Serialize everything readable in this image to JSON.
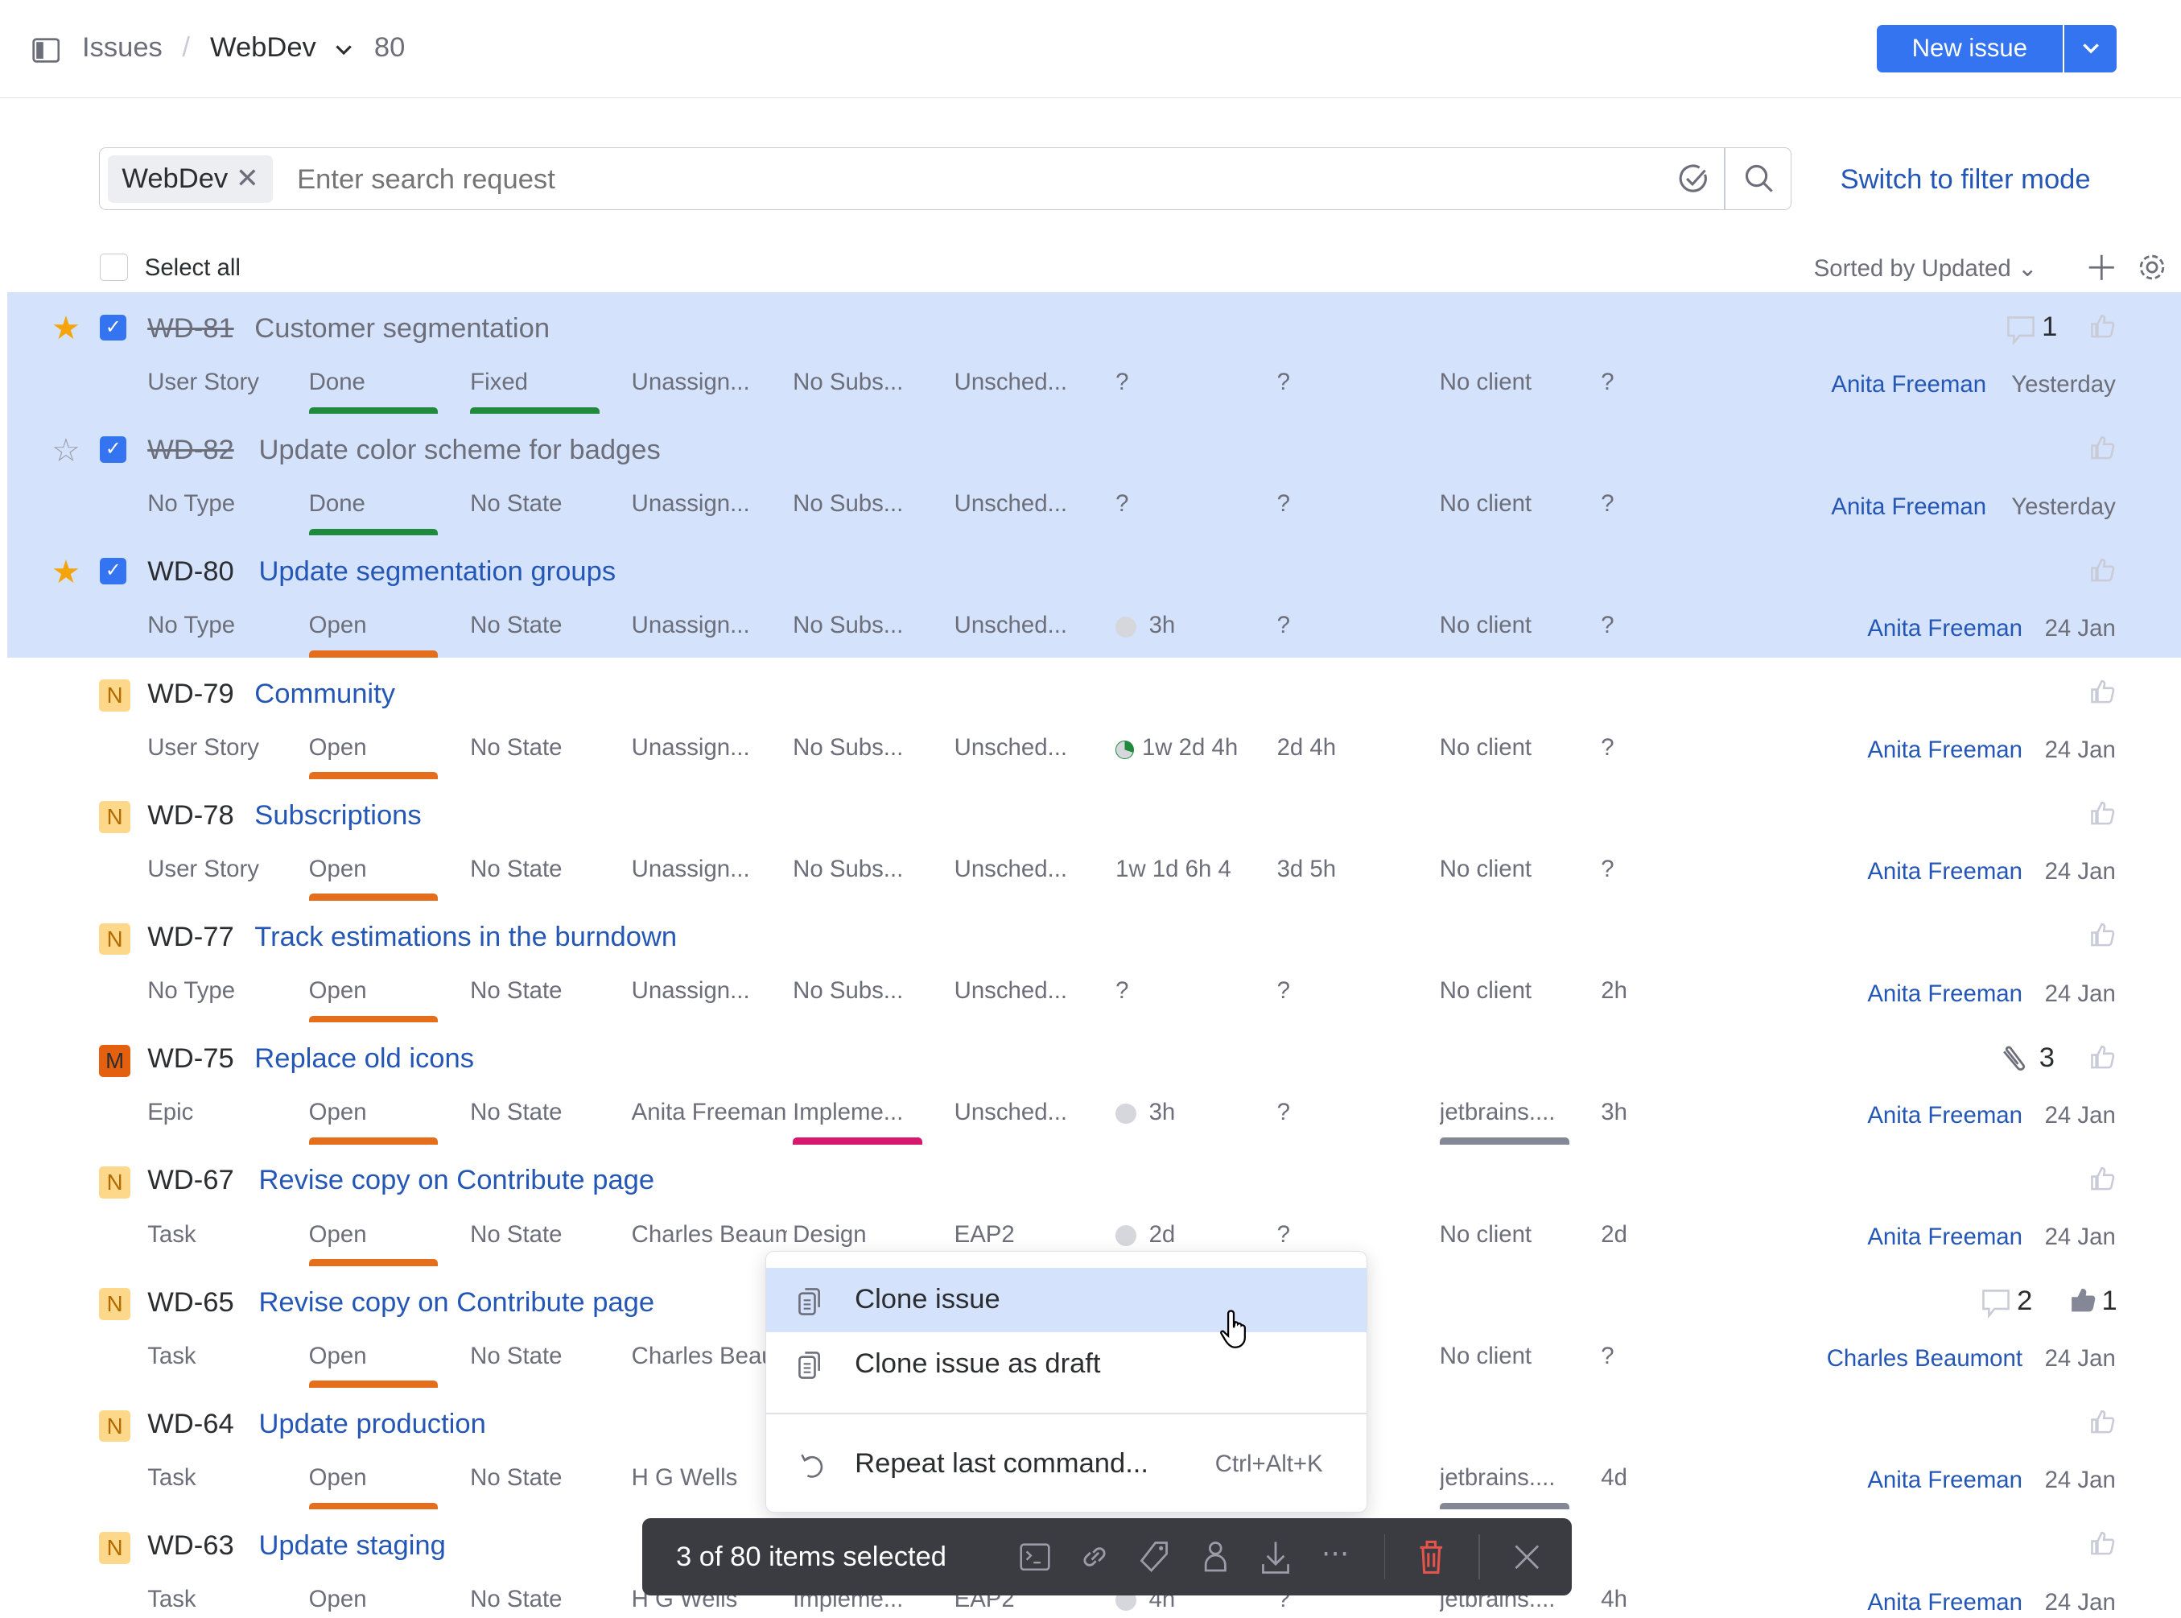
{
  "header": {
    "section": "Issues",
    "project": "WebDev",
    "count": "80",
    "new_issue": "New issue"
  },
  "search": {
    "chip": "WebDev",
    "placeholder": "Enter search request",
    "switch_mode": "Switch to filter mode"
  },
  "list": {
    "select_all": "Select all",
    "sort": "Sorted by Updated"
  },
  "colors": {
    "accent": "#3574f0",
    "selected_row": "#d4e2fc",
    "done": "#1f8a3b",
    "open": "#e56e1c",
    "implementation": "#d6186f",
    "client": "#848796",
    "badge_n": "#fdd78a",
    "badge_m": "#e4600e"
  },
  "issues": [
    {
      "star": true,
      "checked": true,
      "resolved": true,
      "id": "WD-81",
      "title": "Customer segmentation",
      "fields": [
        "User Story",
        "Done",
        "Fixed",
        "Unassign...",
        "No Subs...",
        "Unsched...",
        "?",
        "?",
        "No client",
        "?"
      ],
      "bars": {
        "1": "done",
        "2": "done"
      },
      "est_icon": "",
      "reporter": "Anita Freeman",
      "updated": "Yesterday",
      "comments": "1",
      "attachments": "",
      "votes": ""
    },
    {
      "star": false,
      "checked": true,
      "resolved": true,
      "id": "WD-82",
      "title": "Update color scheme for badges",
      "fields": [
        "No Type",
        "Done",
        "No State",
        "Unassign...",
        "No Subs...",
        "Unsched...",
        "?",
        "?",
        "No client",
        "?"
      ],
      "bars": {
        "1": "done"
      },
      "est_icon": "",
      "reporter": "Anita Freeman",
      "updated": "Yesterday",
      "comments": "",
      "attachments": "",
      "votes": ""
    },
    {
      "star": true,
      "checked": true,
      "resolved": false,
      "id": "WD-80",
      "title": "Update segmentation groups",
      "fields": [
        "No Type",
        "Open",
        "No State",
        "Unassign...",
        "No Subs...",
        "Unsched...",
        "3h",
        "?",
        "No client",
        "?"
      ],
      "bars": {
        "1": "open"
      },
      "est_icon": "empty",
      "reporter": "Anita Freeman",
      "updated": "24 Jan",
      "comments": "",
      "attachments": "",
      "votes": ""
    },
    {
      "priority": "N",
      "id": "WD-79",
      "title": "Community",
      "fields": [
        "User Story",
        "Open",
        "No State",
        "Unassign...",
        "No Subs...",
        "Unsched...",
        "1w 2d 4h",
        "2d 4h",
        "No client",
        "?"
      ],
      "bars": {
        "1": "open"
      },
      "est_icon": "partial",
      "reporter": "Anita Freeman",
      "updated": "24 Jan",
      "comments": "",
      "attachments": "",
      "votes": ""
    },
    {
      "priority": "N",
      "id": "WD-78",
      "title": "Subscriptions",
      "fields": [
        "User Story",
        "Open",
        "No State",
        "Unassign...",
        "No Subs...",
        "Unsched...",
        "1w 1d 6h 4",
        "3d 5h",
        "No client",
        "?"
      ],
      "bars": {
        "1": "open"
      },
      "est_icon": "",
      "reporter": "Anita Freeman",
      "updated": "24 Jan",
      "comments": "",
      "attachments": "",
      "votes": ""
    },
    {
      "priority": "N",
      "id": "WD-77",
      "title": "Track estimations in the burndown",
      "fields": [
        "No Type",
        "Open",
        "No State",
        "Unassign...",
        "No Subs...",
        "Unsched...",
        "?",
        "?",
        "No client",
        "2h"
      ],
      "bars": {
        "1": "open"
      },
      "est_icon": "",
      "reporter": "Anita Freeman",
      "updated": "24 Jan",
      "comments": "",
      "attachments": "",
      "votes": ""
    },
    {
      "priority": "M",
      "id": "WD-75",
      "title": "Replace old icons",
      "fields": [
        "Epic",
        "Open",
        "No State",
        "Anita Freeman",
        "Impleme...",
        "Unsched...",
        "3h",
        "?",
        "jetbrains....",
        "3h"
      ],
      "bars": {
        "1": "open",
        "4": "implementation",
        "8": "client"
      },
      "est_icon": "empty",
      "reporter": "Anita Freeman",
      "updated": "24 Jan",
      "comments": "",
      "attachments": "3",
      "votes": ""
    },
    {
      "priority": "N",
      "id": "WD-67",
      "title": "Revise copy on Contribute page",
      "fields": [
        "Task",
        "Open",
        "No State",
        "Charles Beaumont",
        "Design",
        "EAP2",
        "2d",
        "?",
        "No client",
        "2d"
      ],
      "bars": {
        "1": "open"
      },
      "est_icon": "empty",
      "reporter": "Anita Freeman",
      "updated": "24 Jan",
      "comments": "",
      "attachments": "",
      "votes": ""
    },
    {
      "priority": "N",
      "id": "WD-65",
      "title": "Revise copy on Contribute page",
      "fields": [
        "Task",
        "Open",
        "No State",
        "Charles Beaumont",
        "",
        "",
        "",
        "",
        "No client",
        "?"
      ],
      "bars": {
        "1": "open"
      },
      "est_icon": "",
      "reporter": "Charles Beaumont",
      "updated": "24 Jan",
      "comments": "2",
      "attachments": "",
      "votes": "1"
    },
    {
      "priority": "N",
      "id": "WD-64",
      "title": "Update production",
      "fields": [
        "Task",
        "Open",
        "No State",
        "H G Wells",
        "",
        "",
        "",
        "",
        "jetbrains....",
        "4d"
      ],
      "bars": {
        "1": "open",
        "8": "client"
      },
      "est_icon": "",
      "reporter": "Anita Freeman",
      "updated": "24 Jan",
      "comments": "",
      "attachments": "",
      "votes": ""
    },
    {
      "priority": "N",
      "id": "WD-63",
      "title": "Update staging",
      "fields": [
        "Task",
        "Open",
        "No State",
        "H G Wells",
        "Impleme...",
        "EAP2",
        "4h",
        "?",
        "jetbrains....",
        "4h"
      ],
      "bars": {
        "1": "open"
      },
      "est_icon": "empty",
      "reporter": "Anita Freeman",
      "updated": "24 Jan",
      "comments": "",
      "attachments": "",
      "votes": ""
    }
  ],
  "context_menu": {
    "items": [
      {
        "label": "Clone issue",
        "icon": "clone-icon"
      },
      {
        "label": "Clone issue as draft",
        "icon": "clone-draft-icon"
      },
      {
        "label": "Repeat last command...",
        "icon": "repeat-icon",
        "shortcut": "Ctrl+Alt+K"
      }
    ]
  },
  "selection_toolbar": {
    "label": "3 of 80 items selected",
    "actions": [
      "command-icon",
      "link-icon",
      "tag-icon",
      "assignee-icon",
      "download-icon",
      "more-icon",
      "delete-icon",
      "close-icon"
    ]
  }
}
